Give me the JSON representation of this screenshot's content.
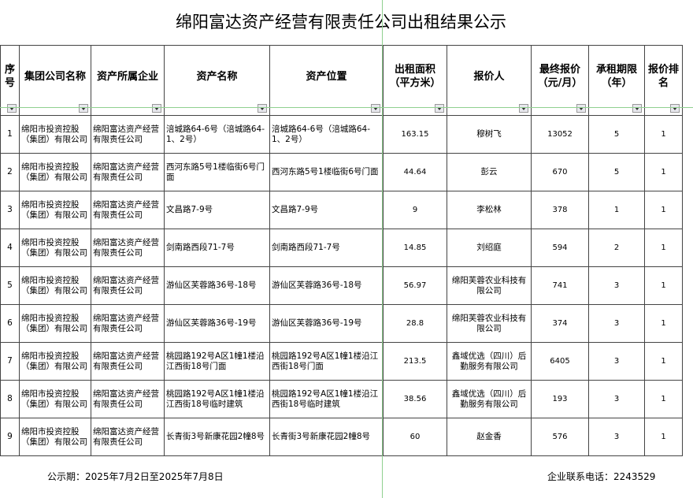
{
  "title": "绵阳富达资产经营有限责任公司出租结果公示",
  "headers": [
    "序号",
    "集团公司名称",
    "资产所属企业",
    "资产名称",
    "资产位置",
    "出租面积（平方米）",
    "报价人",
    "最终报价（元/月）",
    "承租期限（年）",
    "报价排名"
  ],
  "rows": [
    [
      "1",
      "绵阳市投资控股（集团）有限公司",
      "绵阳富达资产经营有限责任公司",
      "涪城路64-6号（涪城路64-1、2号）",
      "涪城路64-6号（涪城路64-1、2号）",
      "163.15",
      "穆树飞",
      "13052",
      "5",
      "1"
    ],
    [
      "2",
      "绵阳市投资控股（集团）有限公司",
      "绵阳富达资产经营有限责任公司",
      "西河东路5号1楼临街6号门面",
      "西河东路5号1楼临街6号门面",
      "44.64",
      "彭云",
      "670",
      "5",
      "1"
    ],
    [
      "3",
      "绵阳市投资控股（集团）有限公司",
      "绵阳富达资产经营有限责任公司",
      "文昌路7-9号",
      "文昌路7-9号",
      "9",
      "李松林",
      "378",
      "1",
      "1"
    ],
    [
      "4",
      "绵阳市投资控股（集团）有限公司",
      "绵阳富达资产经营有限责任公司",
      "剑南路西段71-7号",
      "剑南路西段71-7号",
      "14.85",
      "刘绍庭",
      "594",
      "2",
      "1"
    ],
    [
      "5",
      "绵阳市投资控股（集团）有限公司",
      "绵阳富达资产经营有限责任公司",
      "游仙区芙蓉路36号-18号",
      "游仙区芙蓉路36号-18号",
      "56.97",
      "绵阳芙蓉农业科技有限公司",
      "741",
      "3",
      "1"
    ],
    [
      "6",
      "绵阳市投资控股（集团）有限公司",
      "绵阳富达资产经营有限责任公司",
      "游仙区芙蓉路36号-19号",
      "游仙区芙蓉路36号-19号",
      "28.8",
      "绵阳芙蓉农业科技有限公司",
      "374",
      "3",
      "1"
    ],
    [
      "7",
      "绵阳市投资控股（集团）有限公司",
      "绵阳富达资产经营有限责任公司",
      "桃园路192号A区1幢1楼沿江西街18号门面",
      "桃园路192号A区1幢1楼沿江西街18号门面",
      "213.5",
      "鑫域优选（四川）后勤服务有限公司",
      "6405",
      "3",
      "1"
    ],
    [
      "8",
      "绵阳市投资控股（集团）有限公司",
      "绵阳富达资产经营有限责任公司",
      "桃园路192号A区1幢1楼沿江西街18号临时建筑",
      "桃园路192号A区1幢1楼沿江西街18号临时建筑",
      "38.56",
      "鑫域优选（四川）后勤服务有限公司",
      "193",
      "3",
      "1"
    ],
    [
      "9",
      "绵阳市投资控股（集团）有限公司",
      "绵阳富达资产经营有限责任公司",
      "长青街3号新康花园2幢8号",
      "长青街3号新康花园2幢8号",
      "60",
      "赵金香",
      "576",
      "3",
      "1"
    ]
  ],
  "footer": {
    "period": "公示期：2025年7月2日至2025年7月8日",
    "contact": "企业联系电话：2243529"
  }
}
